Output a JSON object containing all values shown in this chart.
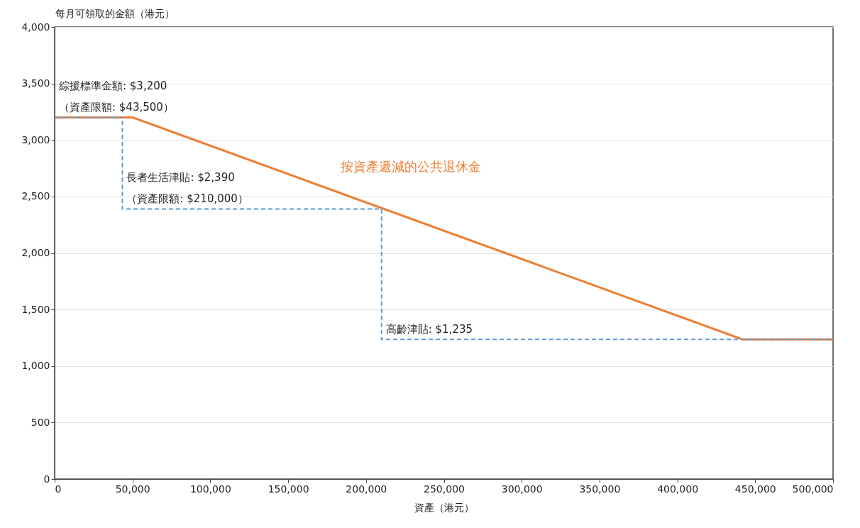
{
  "chart_data": {
    "type": "line",
    "xlabel": "資產（港元）",
    "ylabel": "每月可領取的金額（港元）",
    "xlim": [
      0,
      500000
    ],
    "xticks": [
      0,
      {
        "value": 50000,
        "label": "50,000"
      },
      {
        "value": 100000,
        "label": "100,000"
      },
      {
        "value": 150000,
        "label": "150,000"
      },
      {
        "value": 200000,
        "label": "200,000"
      },
      {
        "value": 250000,
        "label": "250,000"
      },
      {
        "value": 300000,
        "label": "300,000"
      },
      {
        "value": 350000,
        "label": "350,000"
      },
      {
        "value": 400000,
        "label": "400,000"
      },
      {
        "value": 450000,
        "label": "450,000"
      },
      {
        "value": 500000,
        "label": "500,000"
      }
    ],
    "ylim": [
      0,
      4000
    ],
    "yticks": [
      0,
      500,
      {
        "value": 1000,
        "label": "1,000"
      },
      {
        "value": 1500,
        "label": "1,500"
      },
      {
        "value": 2000,
        "label": "2,000"
      },
      {
        "value": 2500,
        "label": "2,500"
      },
      {
        "value": 3000,
        "label": "3,000"
      },
      {
        "value": 3500,
        "label": "3,500"
      },
      {
        "value": 4000,
        "label": "4,000"
      }
    ],
    "grid": "y",
    "series": [
      {
        "name": "按資產遞減的公共退休金",
        "color": "#ed7d31",
        "x": [
          0,
          50000,
          442000,
          500000
        ],
        "values": [
          3200,
          3200,
          1235,
          1235
        ]
      },
      {
        "color": "#5b9bd5",
        "line_style": "dashed",
        "x": [
          0,
          43500,
          43500,
          210000,
          210000,
          500000
        ],
        "values": [
          3200,
          3200,
          2390,
          2390,
          1235,
          1235
        ]
      }
    ],
    "annotations": [
      {
        "text": "綜援標準金額: $3,200\n（資產限額: $43,500）",
        "x": 0,
        "y": 3200
      },
      {
        "text": "長者生活津貼: $2,390\n（資產限額: $210,000）",
        "x": 43500,
        "y": 2390
      },
      {
        "text": "高齡津貼: $1,235",
        "x": 210000,
        "y": 1235
      }
    ]
  }
}
